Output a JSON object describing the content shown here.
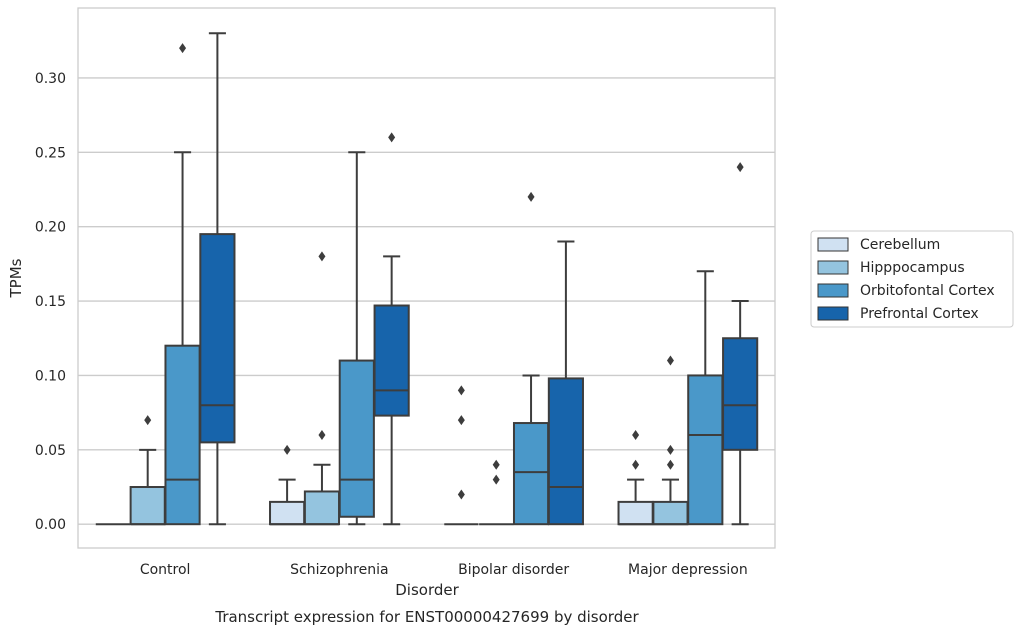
{
  "chart_data": {
    "type": "box",
    "title": "Transcript expression for ENST00000427699 by disorder",
    "xlabel": "Disorder",
    "ylabel": "TPMs",
    "ylim": [
      -0.016,
      0.347
    ],
    "yticks": [
      0.0,
      0.05,
      0.1,
      0.15,
      0.2,
      0.25,
      0.3
    ],
    "ytick_labels": [
      "0.00",
      "0.05",
      "0.10",
      "0.15",
      "0.20",
      "0.25",
      "0.30"
    ],
    "grid": true,
    "legend_position": "right",
    "categories": [
      "Control",
      "Schizophrenia",
      "Bipolar disorder",
      "Major depression"
    ],
    "series": [
      {
        "name": "Cerebellum",
        "color": "#d0e1f2",
        "boxes": [
          {
            "whislo": 0.0,
            "q1": 0.0,
            "med": 0.0,
            "q3": 0.0,
            "whishi": 0.0,
            "fliers": []
          },
          {
            "whislo": 0.0,
            "q1": 0.0,
            "med": 0.0,
            "q3": 0.015,
            "whishi": 0.03,
            "fliers": [
              0.05
            ]
          },
          {
            "whislo": 0.0,
            "q1": 0.0,
            "med": 0.0,
            "q3": 0.0,
            "whishi": 0.0,
            "fliers": [
              0.02,
              0.07,
              0.09
            ]
          },
          {
            "whislo": 0.0,
            "q1": 0.0,
            "med": 0.0,
            "q3": 0.015,
            "whishi": 0.03,
            "fliers": [
              0.04,
              0.06
            ]
          }
        ]
      },
      {
        "name": "Hipppocampus",
        "color": "#94c4df",
        "boxes": [
          {
            "whislo": 0.0,
            "q1": 0.0,
            "med": 0.0,
            "q3": 0.025,
            "whishi": 0.05,
            "fliers": [
              0.07
            ]
          },
          {
            "whislo": 0.0,
            "q1": 0.0,
            "med": 0.0,
            "q3": 0.022,
            "whishi": 0.04,
            "fliers": [
              0.06,
              0.18
            ]
          },
          {
            "whislo": 0.0,
            "q1": 0.0,
            "med": 0.0,
            "q3": 0.0,
            "whishi": 0.0,
            "fliers": [
              0.03,
              0.04
            ]
          },
          {
            "whislo": 0.0,
            "q1": 0.0,
            "med": 0.0,
            "q3": 0.015,
            "whishi": 0.03,
            "fliers": [
              0.04,
              0.05,
              0.11
            ]
          }
        ]
      },
      {
        "name": "Orbitofontal Cortex",
        "color": "#4a98c9",
        "boxes": [
          {
            "whislo": 0.0,
            "q1": 0.0,
            "med": 0.03,
            "q3": 0.12,
            "whishi": 0.25,
            "fliers": [
              0.32
            ]
          },
          {
            "whislo": 0.0,
            "q1": 0.005,
            "med": 0.03,
            "q3": 0.11,
            "whishi": 0.25,
            "fliers": []
          },
          {
            "whislo": 0.0,
            "q1": 0.0,
            "med": 0.035,
            "q3": 0.068,
            "whishi": 0.1,
            "fliers": [
              0.22
            ]
          },
          {
            "whislo": 0.0,
            "q1": 0.0,
            "med": 0.06,
            "q3": 0.1,
            "whishi": 0.17,
            "fliers": []
          }
        ]
      },
      {
        "name": "Prefrontal Cortex",
        "color": "#1764ab",
        "boxes": [
          {
            "whislo": 0.0,
            "q1": 0.055,
            "med": 0.08,
            "q3": 0.195,
            "whishi": 0.33,
            "fliers": []
          },
          {
            "whislo": 0.0,
            "q1": 0.073,
            "med": 0.09,
            "q3": 0.147,
            "whishi": 0.18,
            "fliers": [
              0.26
            ]
          },
          {
            "whislo": 0.0,
            "q1": 0.0,
            "med": 0.025,
            "q3": 0.098,
            "whishi": 0.19,
            "fliers": []
          },
          {
            "whislo": 0.0,
            "q1": 0.05,
            "med": 0.08,
            "q3": 0.125,
            "whishi": 0.15,
            "fliers": [
              0.24
            ]
          }
        ]
      }
    ]
  }
}
